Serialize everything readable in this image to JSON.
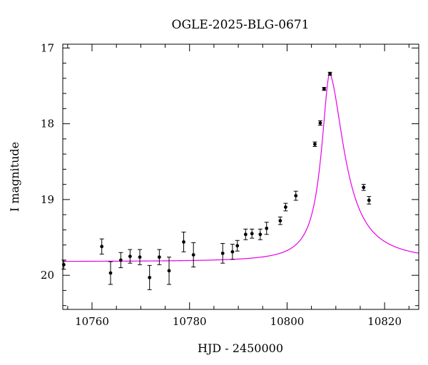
{
  "chart_data": {
    "type": "scatter",
    "title": "OGLE-2025-BLG-0671",
    "xlabel": "HJD - 2450000",
    "ylabel": "I magnitude",
    "xlim": [
      10754,
      10827
    ],
    "ylim": [
      20.45,
      16.95
    ],
    "y_inverted": true,
    "grid": false,
    "x_major_ticks": [
      10760,
      10780,
      10800,
      10820
    ],
    "x_minor_step": 5,
    "y_major_ticks": [
      17,
      18,
      19,
      20
    ],
    "y_minor_step": 0.2,
    "x_tick_labels": [
      "10760",
      "10780",
      "10800",
      "10820"
    ],
    "y_tick_labels": [
      "17",
      "18",
      "19",
      "20"
    ],
    "colors": {
      "model": "#e600e6",
      "points": "#000000"
    },
    "model": {
      "name": "",
      "baseline_mag": 19.82,
      "t0": 10808.7,
      "peak_mag": 17.33,
      "rise_scale": 1.6,
      "fall_scale": 2.9
    },
    "series": [
      {
        "points": [
          {
            "x": 10754.2,
            "y": 19.86,
            "err": 0.06
          },
          {
            "x": 10762.0,
            "y": 19.62,
            "err": 0.1
          },
          {
            "x": 10763.8,
            "y": 19.97,
            "err": 0.15
          },
          {
            "x": 10765.9,
            "y": 19.8,
            "err": 0.1
          },
          {
            "x": 10767.8,
            "y": 19.75,
            "err": 0.09
          },
          {
            "x": 10769.8,
            "y": 19.76,
            "err": 0.1
          },
          {
            "x": 10771.8,
            "y": 20.03,
            "err": 0.16
          },
          {
            "x": 10773.8,
            "y": 19.76,
            "err": 0.1
          },
          {
            "x": 10775.8,
            "y": 19.94,
            "err": 0.18
          },
          {
            "x": 10778.8,
            "y": 19.56,
            "err": 0.13
          },
          {
            "x": 10780.8,
            "y": 19.73,
            "err": 0.16
          },
          {
            "x": 10786.8,
            "y": 19.71,
            "err": 0.13
          },
          {
            "x": 10788.8,
            "y": 19.69,
            "err": 0.1
          },
          {
            "x": 10789.8,
            "y": 19.61,
            "err": 0.07
          },
          {
            "x": 10791.5,
            "y": 19.46,
            "err": 0.07
          },
          {
            "x": 10792.8,
            "y": 19.45,
            "err": 0.06
          },
          {
            "x": 10794.5,
            "y": 19.46,
            "err": 0.07
          },
          {
            "x": 10795.8,
            "y": 19.38,
            "err": 0.08
          },
          {
            "x": 10798.6,
            "y": 19.28,
            "err": 0.05
          },
          {
            "x": 10799.7,
            "y": 19.1,
            "err": 0.05
          },
          {
            "x": 10801.8,
            "y": 18.95,
            "err": 0.06
          },
          {
            "x": 10805.7,
            "y": 18.27,
            "err": 0.03
          },
          {
            "x": 10806.8,
            "y": 17.99,
            "err": 0.03
          },
          {
            "x": 10807.6,
            "y": 17.54,
            "err": 0.02
          },
          {
            "x": 10808.8,
            "y": 17.34,
            "err": 0.02
          },
          {
            "x": 10815.7,
            "y": 18.84,
            "err": 0.04
          },
          {
            "x": 10816.8,
            "y": 19.01,
            "err": 0.05
          }
        ]
      }
    ]
  }
}
